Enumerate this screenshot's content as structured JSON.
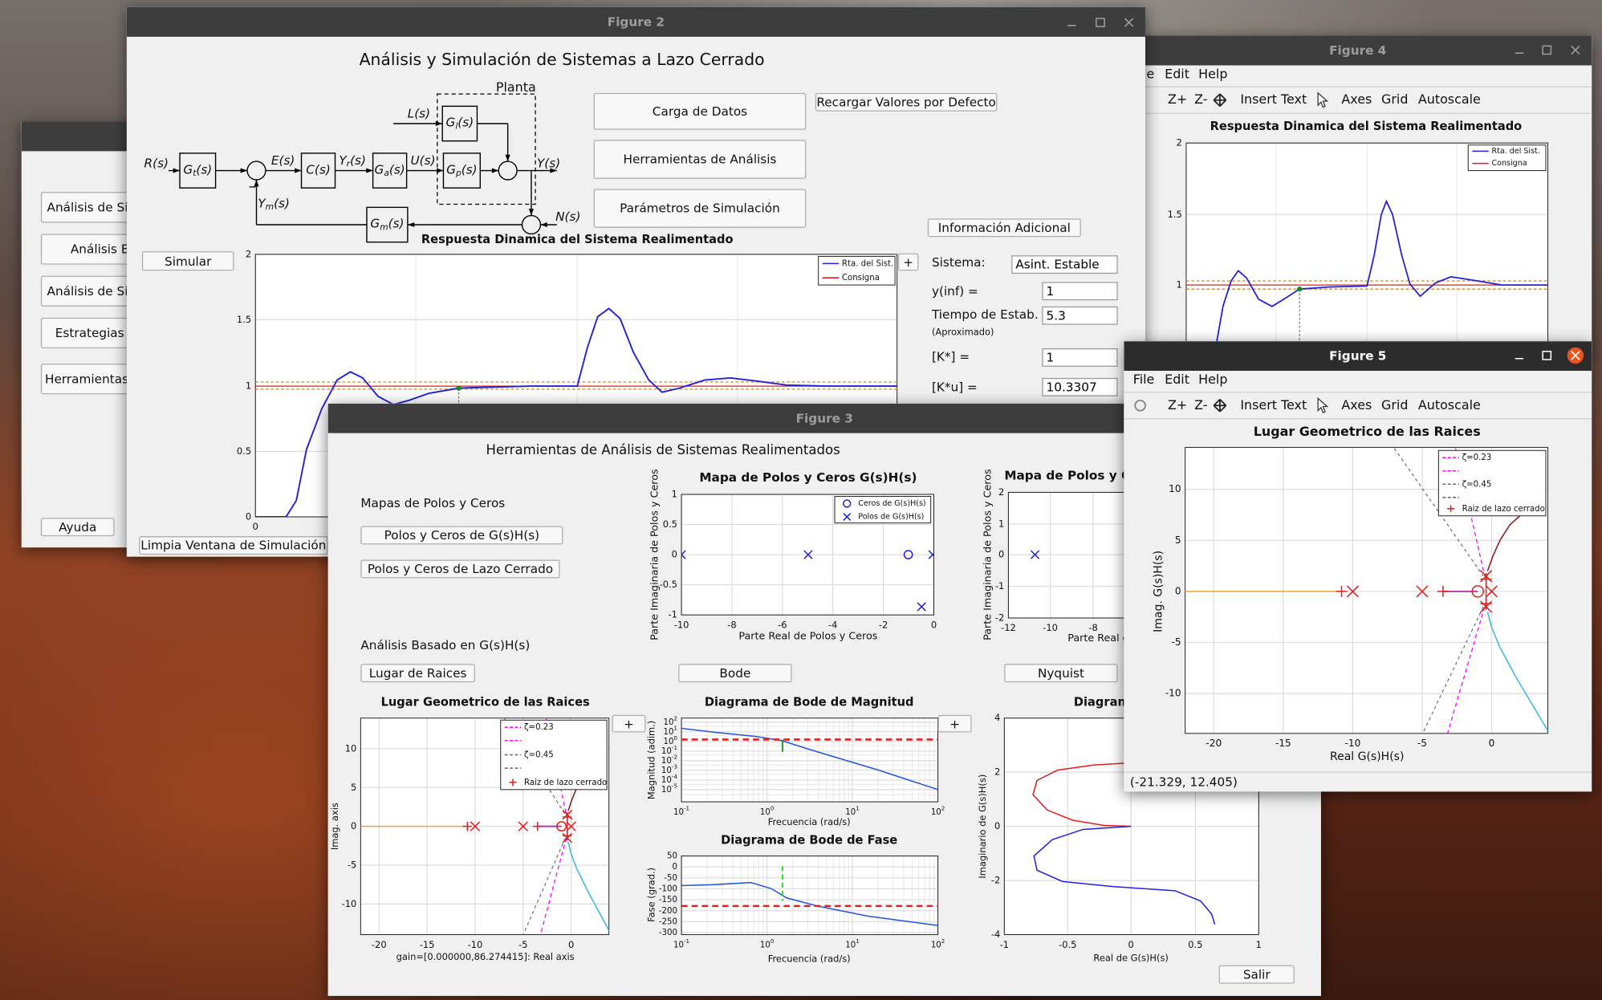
{
  "background_window": {
    "buttons": [
      "Análisis de Sis",
      "Análisis Ba",
      "Análisis de Sist",
      "Estrategias d",
      "Herramientas A",
      "Ayuda"
    ]
  },
  "figure4": {
    "window_title": "Figure 4",
    "menu": [
      "File",
      "Edit",
      "Help"
    ],
    "toolbar": [
      "Z+",
      "Z-",
      "Insert Text",
      "Axes",
      "Grid",
      "Autoscale"
    ],
    "plot": {
      "title": "Respuesta Dinamica del Sistema Realimentado",
      "yticks": [
        "2",
        "1.5",
        "1"
      ],
      "legend": [
        "Rta. del Sist.",
        "Consigna"
      ]
    }
  },
  "figure2": {
    "window_title": "Figure 2",
    "heading": "Análisis y Simulación de Sistemas a Lazo Cerrado",
    "diagram": {
      "plant_label": "Planta",
      "signals": [
        {
          "base": "R",
          "arg": "(s)"
        },
        {
          "base": "E",
          "arg": "(s)"
        },
        {
          "base": "Y",
          "sub": "r",
          "arg": "(s)"
        },
        {
          "base": "U",
          "arg": "(s)"
        },
        {
          "base": "Y",
          "arg": "(s)"
        },
        {
          "base": "L",
          "arg": "(s)"
        },
        {
          "base": "N",
          "arg": "(s)"
        },
        {
          "base": "Y",
          "sub": "m",
          "arg": "(s)"
        }
      ],
      "blocks": [
        {
          "base": "G",
          "sub": "t",
          "arg": "(s)"
        },
        {
          "base": "C",
          "arg": "(s)"
        },
        {
          "base": "G",
          "sub": "a",
          "arg": "(s)"
        },
        {
          "base": "G",
          "sub": "p",
          "arg": "(s)"
        },
        {
          "base": "G",
          "sub": "l",
          "arg": "(s)"
        },
        {
          "base": "G",
          "sub": "m",
          "arg": "(s)"
        }
      ]
    },
    "buttons": [
      "Carga de Datos",
      "Herramientas de Análisis",
      "Parámetros de Simulación",
      "Recargar Valores por Defecto",
      "Información Adicional",
      "Simular",
      "Limpia Ventana de Simulación",
      "+"
    ],
    "fields": [
      {
        "label": "Sistema:",
        "value": "Asint. Estable"
      },
      {
        "label": "y(inf) =",
        "value": "1"
      },
      {
        "label": "Tiempo de Estab. =",
        "note": "(Aproximado)",
        "value": "5.3"
      },
      {
        "label": "[K*] =",
        "value": "1"
      },
      {
        "label": "[K*u] =",
        "value": "10.3307"
      }
    ],
    "plot": {
      "title": "Respuesta Dinamica del Sistema Realimentado",
      "xticks": [
        "0"
      ],
      "yticks": [
        "0",
        "0.5",
        "1",
        "1.5",
        "2"
      ],
      "legend": [
        "Rta. del Sist.",
        "Consigna"
      ]
    }
  },
  "figure3": {
    "window_title": "Figure 3",
    "heading": "Herramientas de Análisis de Sistemas Realimentados",
    "sections": [
      "Mapas de Polos y Ceros",
      "Análisis Basado en G(s)H(s)"
    ],
    "buttons": [
      "Polos y Ceros de G(s)H(s)",
      "Polos y Ceros de Lazo Cerrado",
      "Lugar de Raices",
      "Bode",
      "Nyquist",
      "+",
      "+",
      "Salir"
    ],
    "plots": [
      {
        "title": "Mapa de Polos y Ceros G(s)H(s)",
        "xlabel": "Parte Real de Polos y Ceros",
        "ylabel": "Parte Imaginaria de Polos y Ceros",
        "xticks": [
          "-10",
          "-8",
          "-6",
          "-4",
          "-2",
          "0"
        ],
        "yticks": [
          "1",
          "0.5",
          "0",
          "-0.5",
          "-1"
        ],
        "legend": [
          "Ceros de G(s)H(s)",
          "Polos de G(s)H(s)"
        ]
      },
      {
        "title": "Mapa de Polos y C",
        "xlabel": "Parte Real d",
        "ylabel": "Parte Imaginaria de Polos y Ceros",
        "xticks": [
          "-12",
          "-10",
          "-8"
        ],
        "yticks": [
          "2",
          "1",
          "0",
          "-1",
          "-2"
        ]
      },
      {
        "title": "Lugar Geometrico de las Raices",
        "xlabel": "gain=[0.000000,86.274415]: Real axis",
        "ylabel": "Imag. axis",
        "xticks": [
          "-20",
          "-15",
          "-10",
          "-5",
          "0"
        ],
        "yticks": [
          "10",
          "5",
          "0",
          "-5",
          "-10"
        ],
        "legend": [
          "ζ=0.23",
          "ζ=0.45",
          "Raiz de lazo cerrado"
        ]
      },
      {
        "title": "Diagrama de Bode de Magnitud",
        "xlabel": "Frecuencia (rad/s)",
        "ylabel": "Magnitud (adim.)",
        "xticks": [
          {
            "base": "10",
            "exp": "-1"
          },
          {
            "base": "10",
            "exp": "0"
          },
          {
            "base": "10",
            "exp": "1"
          },
          {
            "base": "10",
            "exp": "2"
          }
        ],
        "yticks": [
          {
            "base": "10",
            "exp": "2"
          },
          {
            "base": "10",
            "exp": "1"
          },
          {
            "base": "10",
            "exp": "0"
          },
          {
            "base": "10",
            "exp": "-1"
          },
          {
            "base": "10",
            "exp": "-2"
          },
          {
            "base": "10",
            "exp": "-3"
          },
          {
            "base": "10",
            "exp": "-4"
          },
          {
            "base": "10",
            "exp": "-5"
          }
        ]
      },
      {
        "title": "Diagrama de Bode de Fase",
        "xlabel": "Frecuencia (rad/s)",
        "ylabel": "Fase (grad.)",
        "xticks": [
          {
            "base": "10",
            "exp": "-1"
          },
          {
            "base": "10",
            "exp": "0"
          },
          {
            "base": "10",
            "exp": "1"
          },
          {
            "base": "10",
            "exp": "2"
          }
        ],
        "yticks": [
          "50",
          "0",
          "-50",
          "-100",
          "-150",
          "-200",
          "-250",
          "-300"
        ]
      },
      {
        "title": "Diagrama",
        "xlabel": "Real de G(s)H(s)",
        "ylabel": "Imaginario de G(s)H(s)",
        "xticks": [
          "-1",
          "-0.5",
          "0",
          "0.5",
          "1"
        ],
        "yticks": [
          "4",
          "2",
          "0",
          "-2",
          "-4"
        ]
      }
    ]
  },
  "figure5": {
    "window_title": "Figure 5",
    "menu": [
      "File",
      "Edit",
      "Help"
    ],
    "toolbar": [
      "Z+",
      "Z-",
      "Insert Text",
      "Axes",
      "Grid",
      "Autoscale"
    ],
    "plot": {
      "title": "Lugar Geometrico de las Raices",
      "xlabel": "Real G(s)H(s)",
      "ylabel": "Imag. G(s)H(s)",
      "xticks": [
        "-20",
        "-15",
        "-10",
        "-5",
        "0"
      ],
      "yticks": [
        "10",
        "5",
        "0",
        "-5",
        "-10"
      ],
      "legend": [
        "ζ=0.23",
        "ζ=0.45",
        "Raiz de lazo cerrado"
      ]
    },
    "status": "(-21.329, 12.405)"
  }
}
